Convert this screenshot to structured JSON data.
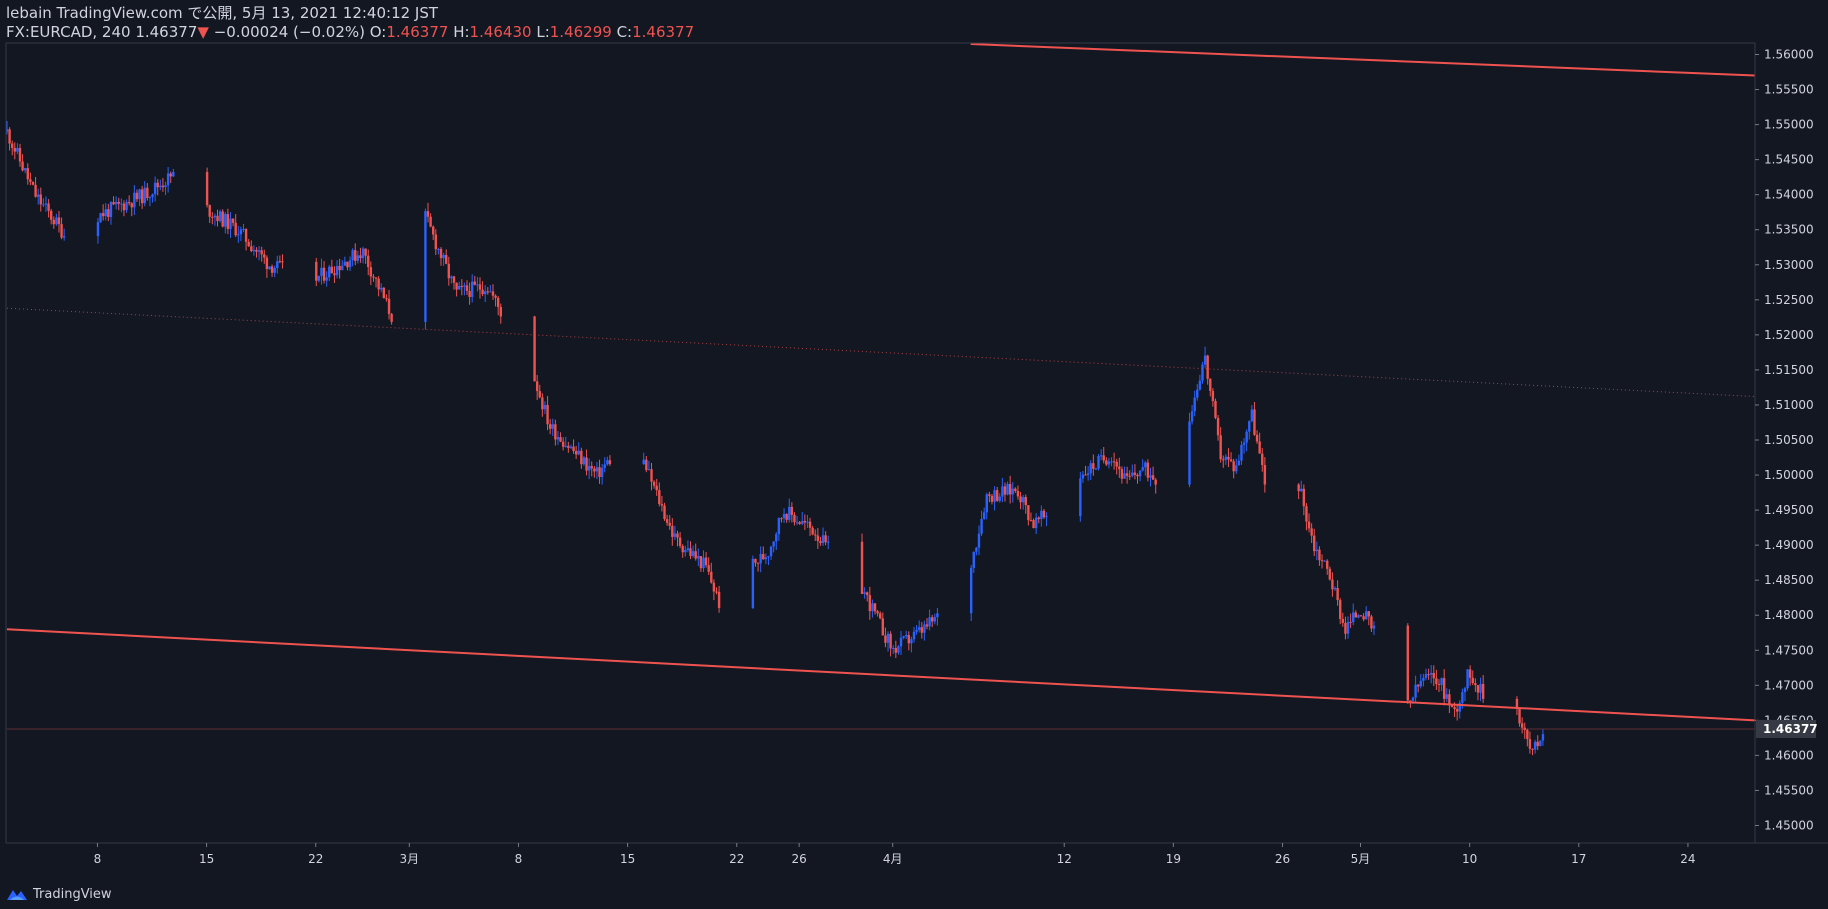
{
  "header": {
    "published": "lebain TradingView.com で公開, 5月 13, 2021 12:40:12 JST",
    "symbol": "FX:EURCAD, 240",
    "last": "1.46377",
    "change_arrow": "▼",
    "change": "−0.00024 (−0.02%)",
    "o_label": "O:",
    "o_value": "1.46377",
    "h_label": "H:",
    "h_value": "1.46430",
    "l_label": "L:",
    "l_value": "1.46299",
    "c_label": "C:",
    "c_value": "1.46377"
  },
  "footer": {
    "brand": "TradingView"
  },
  "colors": {
    "background": "#131722",
    "up": "#2962ff",
    "down": "#ef5350",
    "trendline": "#ef5350",
    "grid": "#2a2e39",
    "text": "#d1d4dc"
  },
  "chart_data": {
    "type": "candlestick",
    "symbol": "FX:EURCAD",
    "interval": "240",
    "ylim": [
      1.4475,
      1.5615
    ],
    "y_ticks": [
      "1.56000",
      "1.55500",
      "1.55000",
      "1.54500",
      "1.54000",
      "1.53500",
      "1.53000",
      "1.52500",
      "1.52000",
      "1.51500",
      "1.51000",
      "1.50500",
      "1.50000",
      "1.49500",
      "1.49000",
      "1.48500",
      "1.48000",
      "1.47500",
      "1.47000",
      "1.46500",
      "1.46000",
      "1.45500",
      "1.45000"
    ],
    "y_tick_values": [
      1.56,
      1.555,
      1.55,
      1.545,
      1.54,
      1.535,
      1.53,
      1.525,
      1.52,
      1.515,
      1.51,
      1.505,
      1.5,
      1.495,
      1.49,
      1.485,
      1.48,
      1.475,
      1.47,
      1.465,
      1.46,
      1.455,
      1.45
    ],
    "x_ticks": [
      {
        "label": "8",
        "day": 8
      },
      {
        "label": "15",
        "day": 15
      },
      {
        "label": "22",
        "day": 22
      },
      {
        "label": "3月",
        "day": 28
      },
      {
        "label": "8",
        "day": 35
      },
      {
        "label": "15",
        "day": 42
      },
      {
        "label": "22",
        "day": 49
      },
      {
        "label": "26",
        "day": 53
      },
      {
        "label": "4月",
        "day": 59
      },
      {
        "label": "12",
        "day": 70
      },
      {
        "label": "19",
        "day": 77
      },
      {
        "label": "26",
        "day": 84
      },
      {
        "label": "5月",
        "day": 89
      },
      {
        "label": "10",
        "day": 96
      },
      {
        "label": "17",
        "day": 103
      },
      {
        "label": "24",
        "day": 110
      }
    ],
    "x_range_days": [
      2.2,
      114.3
    ],
    "last_price": "1.46377",
    "last_price_value": 1.46377,
    "price_path_days": [
      2.2,
      4,
      6,
      8,
      11,
      13,
      15,
      17,
      19,
      22,
      25,
      27,
      29,
      31,
      33,
      36,
      37,
      40,
      42,
      43,
      45,
      47,
      48,
      50,
      51,
      52,
      54,
      56,
      57,
      59,
      61,
      62,
      64,
      65,
      67,
      68,
      70,
      71,
      73,
      74,
      75,
      77,
      78,
      79,
      80,
      81,
      82,
      83,
      84,
      85,
      86,
      87,
      88,
      89,
      90,
      91,
      92,
      93,
      94,
      95,
      96,
      97,
      98,
      99,
      100,
      100.7
    ],
    "price_path": [
      1.549,
      1.54,
      1.534,
      1.537,
      1.54,
      1.543,
      1.538,
      1.535,
      1.53,
      1.528,
      1.532,
      1.522,
      1.537,
      1.526,
      1.527,
      1.514,
      1.507,
      1.5,
      1.505,
      1.502,
      1.491,
      1.487,
      1.481,
      1.487,
      1.489,
      1.495,
      1.492,
      1.486,
      1.484,
      1.475,
      1.478,
      1.48,
      1.487,
      1.497,
      1.498,
      1.493,
      1.496,
      1.5,
      1.503,
      1.499,
      1.501,
      1.498,
      1.508,
      1.517,
      1.503,
      1.501,
      1.509,
      1.497,
      1.496,
      1.499,
      1.49,
      1.486,
      1.478,
      1.481,
      1.477,
      1.472,
      1.467,
      1.471,
      1.471,
      1.466,
      1.472,
      1.468,
      1.47,
      1.467,
      1.46,
      1.46377
    ],
    "trendlines": [
      {
        "name": "upper-channel",
        "style": "solid",
        "points": [
          [
            64.0,
            1.5615
          ],
          [
            114.3,
            1.557
          ]
        ]
      },
      {
        "name": "middle-channel",
        "style": "dotted",
        "points": [
          [
            2.2,
            1.5238
          ],
          [
            114.3,
            1.5112
          ]
        ]
      },
      {
        "name": "lower-channel",
        "style": "solid",
        "points": [
          [
            2.2,
            1.478
          ],
          [
            114.3,
            1.465
          ]
        ]
      }
    ]
  }
}
